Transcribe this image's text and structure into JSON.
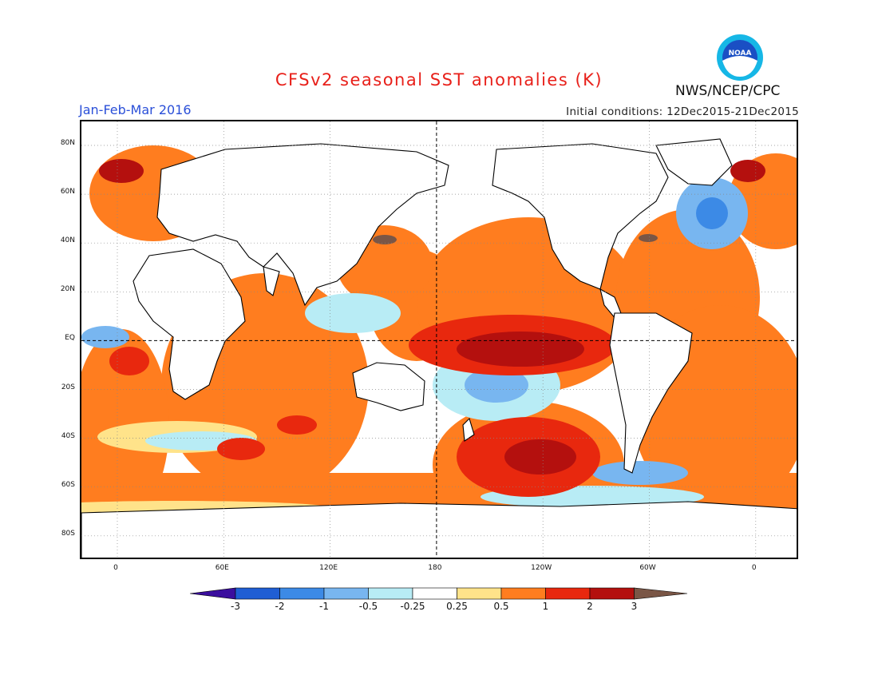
{
  "title": "CFSv2 seasonal SST anomalies (K)",
  "period": "Jan-Feb-Mar 2016",
  "initial_conditions": "Initial conditions: 12Dec2015-21Dec2015",
  "agency": "NWS/NCEP/CPC",
  "logo": {
    "text": "NOAA",
    "icon": "noaa-logo-icon"
  },
  "lat_labels": [
    "80N",
    "60N",
    "40N",
    "20N",
    "EQ",
    "20S",
    "40S",
    "60S",
    "80S"
  ],
  "lon_labels": [
    "0",
    "60E",
    "120E",
    "180",
    "120W",
    "60W",
    "0"
  ],
  "colorbar": {
    "labels": [
      "-3",
      "-2",
      "-1",
      "-0.5",
      "-0.25",
      "0.25",
      "0.5",
      "1",
      "2",
      "3"
    ],
    "colors": [
      "#3b0e9e",
      "#1f5ed4",
      "#3c8ae6",
      "#78b6f0",
      "#b8ecf5",
      "#ffffff",
      "#ffe38a",
      "#ff7d1f",
      "#e8280e",
      "#b4100e",
      "#7a5646"
    ]
  },
  "map_colors": {
    "warm": "#ff7d1f",
    "hot": "#e8280e",
    "very_hot": "#b4100e",
    "extreme": "#7a5646",
    "cool": "#b8ecf5",
    "cold": "#78b6f0",
    "colder": "#3c8ae6",
    "coldest": "#1f5ed4",
    "pale": "#ffe38a"
  }
}
